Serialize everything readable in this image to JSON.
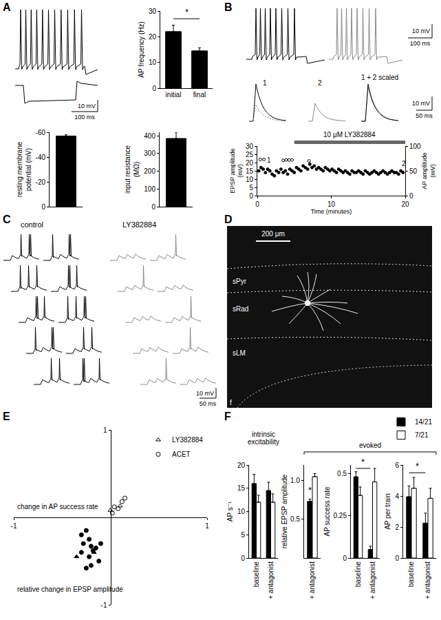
{
  "figure": {
    "panel_labels": [
      "A",
      "B",
      "C",
      "D",
      "E",
      "F"
    ],
    "A": {
      "scale_bar": {
        "voltage": "10 mV",
        "time": "100 ms"
      }
    },
    "B": {
      "scale_bars": [
        {
          "voltage": "10 mV",
          "time": "100 ms"
        },
        {
          "voltage": "10 mV",
          "time": "50 ms"
        }
      ],
      "trace_labels": [
        "1",
        "2",
        "1 + 2 scaled"
      ]
    },
    "C": {
      "conditions": [
        "control",
        "LY382884"
      ],
      "scale_bar": {
        "voltage": "10 mV",
        "time": "50 ms"
      }
    },
    "D": {
      "scale_bar": "200 μm",
      "layers": [
        "sPyr",
        "sRad",
        "sLM"
      ],
      "fissure": "f"
    },
    "F": {
      "groups": [
        "intrinsic excitability",
        "evoked"
      ]
    }
  },
  "chart_data": [
    {
      "type": "bar",
      "ylabel": "AP frequency (Hz)",
      "categories": [
        "initial",
        "final"
      ],
      "values": [
        22,
        14.5
      ],
      "errors": [
        2.5,
        1.2
      ],
      "color": "#000000",
      "ylim": [
        0,
        30
      ],
      "yticks": [
        0,
        10,
        20,
        30
      ],
      "significance": [
        {
          "text": "*",
          "between": [
            "initial",
            "final"
          ],
          "y": 27
        }
      ]
    },
    {
      "type": "bar",
      "ylabel": "resting membrane potential (mV)",
      "categories": [
        null
      ],
      "values": [
        -57
      ],
      "errors": [
        1
      ],
      "color": "#000000",
      "ylim": [
        0,
        -60
      ],
      "yticks": [
        0,
        -20,
        -40,
        -60
      ]
    },
    {
      "type": "bar",
      "ylabel": "input resistance (MΩ)",
      "categories": [
        null
      ],
      "values": [
        385
      ],
      "errors": [
        35
      ],
      "color": "#000000",
      "ylim": [
        0,
        420
      ],
      "yticks": [
        0,
        100,
        200,
        300,
        400
      ]
    },
    {
      "type": "scatter",
      "xlabel": "Time (minutes)",
      "ylabel": "EPSP amplitude (mV)",
      "y2label": "AP amplitude (mV)",
      "xlim": [
        0,
        20
      ],
      "xticks": [
        0,
        10,
        20
      ],
      "ylim": [
        0,
        30
      ],
      "yticks": [
        0,
        5,
        10,
        15,
        20,
        25,
        30
      ],
      "y2lim": [
        0,
        100
      ],
      "y2ticks": [
        0,
        50,
        100
      ],
      "series": [
        {
          "axis": "y",
          "marker": "circle",
          "color": "#000000",
          "x": [
            0.2,
            0.5,
            0.8,
            1.1,
            1.4,
            1.7,
            2.0,
            2.3,
            2.6,
            2.9,
            3.2,
            3.5,
            3.8,
            4.1,
            4.4,
            4.7,
            5.0,
            5.3,
            5.6,
            5.9,
            6.2,
            6.5,
            6.8,
            7.1,
            7.4,
            7.7,
            8.0,
            8.3,
            8.6,
            8.9,
            9.2,
            9.5,
            9.8,
            10.1,
            10.4,
            10.7,
            11.0,
            11.3,
            11.6,
            11.9,
            12.2,
            12.5,
            12.8,
            13.1,
            13.4,
            13.7,
            14.0,
            14.3,
            14.6,
            14.9,
            15.2,
            15.5,
            15.8,
            16.1,
            16.4,
            16.7,
            17.0,
            17.3,
            17.6,
            17.9,
            18.2,
            18.5,
            18.8,
            19.1,
            19.4,
            19.7
          ],
          "values": [
            15,
            17,
            16,
            14,
            16,
            15,
            13,
            12,
            15,
            14,
            16,
            14,
            15,
            13,
            16,
            15,
            14,
            17,
            16,
            15,
            18,
            17,
            16,
            19,
            17,
            18,
            16,
            17,
            16,
            15,
            17,
            16,
            15,
            16,
            15,
            14,
            16,
            15,
            14,
            15,
            14,
            13,
            15,
            14,
            14,
            15,
            14,
            13,
            15,
            14,
            13,
            14,
            15,
            14,
            13,
            14,
            15,
            14,
            13,
            14,
            15,
            14,
            14,
            13,
            15,
            14
          ]
        },
        {
          "axis": "y2",
          "marker": "circle-open",
          "color": "#000000",
          "x": [
            0.4,
            0.9,
            3.5,
            3.9,
            4.3,
            4.7,
            7.0
          ],
          "values": [
            73,
            73,
            71,
            72,
            72,
            72,
            70
          ]
        }
      ],
      "drug": {
        "text": "10 μM LY382884",
        "x": [
          5,
          20
        ]
      },
      "annotations": [
        {
          "text": "1",
          "x": 1.6,
          "y": 21.5
        },
        {
          "text": "2",
          "x": 19.8,
          "y": 19.5
        }
      ]
    },
    {
      "type": "scatter",
      "xlabel": "relative change in EPSP amplitude",
      "ylabel": "change in AP success rate",
      "xlim": [
        -1,
        1
      ],
      "xticks": [
        -1,
        1
      ],
      "ylim": [
        -1,
        1
      ],
      "yticks": [
        -1,
        1
      ],
      "legend": "upper right",
      "series": [
        {
          "name": "LY382884",
          "marker": "triangle-open",
          "color": "#000000",
          "x": [
            0.1,
            0.0
          ],
          "values": [
            0.13,
            0.08
          ]
        },
        {
          "name": "ACET",
          "marker": "circle-open",
          "color": "#000000",
          "x": [
            0.15,
            0.12,
            0.04,
            0.08,
            0.02
          ],
          "values": [
            0.22,
            0.18,
            0.12,
            0.1,
            0.05
          ]
        },
        {
          "name": "LY382884",
          "marker": "triangle",
          "color": "#000000",
          "x": [
            -0.35,
            -0.17
          ],
          "values": [
            -0.45,
            -0.4
          ]
        },
        {
          "name": "ACET",
          "marker": "circle",
          "color": "#000000",
          "x": [
            -0.25,
            -0.3,
            -0.22,
            -0.28,
            -0.2,
            -0.15,
            -0.3,
            -0.22,
            -0.18,
            -0.12,
            -0.2,
            -0.25,
            -0.1
          ],
          "values": [
            -0.15,
            -0.2,
            -0.25,
            -0.3,
            -0.33,
            -0.35,
            -0.4,
            -0.45,
            -0.38,
            -0.5,
            -0.55,
            -0.58,
            -0.3
          ]
        }
      ]
    },
    {
      "type": "bar",
      "ylabel": "AP s⁻¹",
      "categories": [
        "baseline",
        "+ antagonist"
      ],
      "ylim": [
        0,
        20
      ],
      "yticks": [
        0,
        5,
        10,
        15,
        20
      ],
      "series": [
        {
          "name": "14/21",
          "color": "#000000",
          "values": [
            16,
            14.5
          ],
          "errors": [
            2,
            1.8
          ]
        },
        {
          "name": "7/21",
          "color": "#ffffff",
          "values": [
            12,
            12
          ],
          "errors": [
            1.5,
            1.8
          ]
        }
      ]
    },
    {
      "type": "bar",
      "ylabel": "relative EPSP amplitude",
      "categories": [
        "+ antagonist"
      ],
      "ylim": [
        0,
        1.2
      ],
      "yticks": [
        0.5,
        {
          "value": 1,
          "label": "1.0"
        }
      ],
      "series": [
        {
          "name": "14/21",
          "color": "#000000",
          "values": [
            0.73
          ],
          "errors": [
            0.03
          ]
        },
        {
          "name": "7/21",
          "color": "#ffffff",
          "values": [
            1.05
          ],
          "errors": [
            0.04
          ]
        }
      ],
      "significance": [
        {
          "text": "*",
          "at": "+ antagonist",
          "series": "14/21",
          "y": 0.79
        }
      ]
    },
    {
      "type": "bar",
      "ylabel": "AP success rate",
      "categories": [
        "baseline",
        "+ antagonist"
      ],
      "ylim": [
        0,
        0.55
      ],
      "yticks": [
        0,
        0.25,
        0.5
      ],
      "series": [
        {
          "name": "14/21",
          "color": "#000000",
          "values": [
            0.48,
            0.05
          ],
          "errors": [
            0.03,
            0.02
          ]
        },
        {
          "name": "7/21",
          "color": "#ffffff",
          "values": [
            0.37,
            0.45
          ],
          "errors": [
            0.05,
            0.08
          ]
        }
      ],
      "significance": [
        {
          "text": "*",
          "between": [
            "baseline",
            "+ antagonist"
          ],
          "series": "14/21",
          "y": 0.53
        }
      ]
    },
    {
      "type": "bar",
      "ylabel": "AP per train",
      "categories": [
        "baseline",
        "+ antagonist"
      ],
      "ylim": [
        0,
        6
      ],
      "yticks": [
        0,
        2,
        4,
        6
      ],
      "legend": "upper right",
      "series": [
        {
          "name": "14/21",
          "color": "#000000",
          "values": [
            3.95,
            2.25
          ],
          "errors": [
            0.7,
            0.65
          ]
        },
        {
          "name": "7/21",
          "color": "#ffffff",
          "values": [
            4.5,
            3.85
          ],
          "errors": [
            0.7,
            0.65
          ]
        }
      ],
      "significance": [
        {
          "text": "*",
          "between": [
            "baseline",
            "+ antagonist"
          ],
          "series": "14/21",
          "y": 5.5
        }
      ]
    }
  ]
}
